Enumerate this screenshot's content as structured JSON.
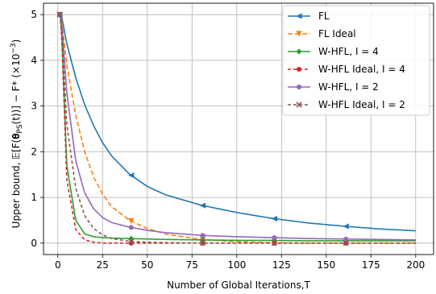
{
  "chart_data": {
    "type": "line",
    "xlabel": "Number of Global Iterations,T",
    "ylabel_main": "Upper bound, 𝔼[F(𝛉",
    "ylabel_sub": "PS",
    "ylabel_tail": "(t))] − F* (×10",
    "ylabel_exp": "−3",
    "ylabel_close": ")",
    "xlim": [
      -8,
      210
    ],
    "ylim": [
      -0.25,
      5.25
    ],
    "xticks": [
      0,
      25,
      50,
      75,
      100,
      125,
      150,
      175,
      200
    ],
    "yticks": [
      0,
      1,
      2,
      3,
      4,
      5
    ],
    "xtick_labels": [
      "0",
      "25",
      "50",
      "75",
      "100",
      "125",
      "150",
      "175",
      "200"
    ],
    "ytick_labels": [
      "0",
      "1",
      "2",
      "3",
      "4",
      "5"
    ],
    "grid": true,
    "legend_position": "top-right",
    "legend": [
      "FL",
      "FL Ideal",
      "W-HFL, I = 4",
      "W-HFL Ideal, I = 4",
      "W-HFL, I = 2",
      "W-HFL Ideal, I = 2"
    ],
    "x": [
      1,
      2,
      5,
      10,
      15,
      20,
      25,
      30,
      40,
      50,
      60,
      80,
      100,
      120,
      140,
      160,
      180,
      200
    ],
    "series": [
      {
        "name": "FL",
        "color": "#1f77b4",
        "dash": "",
        "marker": "triangle-left",
        "values": [
          5.0,
          4.99,
          4.37,
          3.62,
          3.03,
          2.57,
          2.2,
          1.91,
          1.51,
          1.24,
          1.06,
          0.83,
          0.67,
          0.54,
          0.44,
          0.37,
          0.31,
          0.27
        ],
        "markers_at": [
          1,
          41,
          81,
          121,
          161
        ]
      },
      {
        "name": "FL Ideal",
        "color": "#ff7f0e",
        "dash": "6,3",
        "marker": "triangle-down",
        "values": [
          5.0,
          4.95,
          3.9,
          2.8,
          2.0,
          1.45,
          1.07,
          0.8,
          0.5,
          0.32,
          0.2,
          0.08,
          0.03,
          0.01,
          0.0,
          0.0,
          0.0,
          0.0
        ],
        "markers_at": [
          1,
          41,
          81,
          121,
          161
        ]
      },
      {
        "name": "W-HFL, I = 4",
        "color": "#2ca02c",
        "dash": "",
        "marker": "diamond",
        "values": [
          5.0,
          4.8,
          1.7,
          0.5,
          0.2,
          0.14,
          0.12,
          0.11,
          0.1,
          0.09,
          0.08,
          0.07,
          0.06,
          0.06,
          0.05,
          0.05,
          0.05,
          0.05
        ],
        "markers_at": [
          1,
          41,
          81,
          121,
          161
        ]
      },
      {
        "name": "W-HFL Ideal, I = 4",
        "color": "#d62728",
        "dash": "4,3",
        "marker": "circle",
        "values": [
          5.0,
          4.7,
          1.4,
          0.3,
          0.07,
          0.02,
          0.0,
          0.0,
          0.0,
          0.0,
          0.0,
          0.0,
          0.0,
          0.0,
          0.0,
          0.0,
          0.0,
          0.0
        ],
        "markers_at": [
          1,
          41,
          81,
          121,
          161
        ]
      },
      {
        "name": "W-HFL, I = 2",
        "color": "#9467bd",
        "dash": "",
        "marker": "hexagon",
        "values": [
          5.0,
          4.9,
          3.3,
          1.8,
          1.1,
          0.75,
          0.56,
          0.45,
          0.35,
          0.28,
          0.23,
          0.17,
          0.14,
          0.12,
          0.1,
          0.09,
          0.08,
          0.07
        ],
        "markers_at": [
          1,
          41,
          81,
          121,
          161
        ]
      },
      {
        "name": "W-HFL Ideal, I = 2",
        "color": "#8c564b",
        "dash": "4,3",
        "marker": "x",
        "values": [
          5.0,
          4.85,
          2.6,
          1.2,
          0.6,
          0.32,
          0.18,
          0.1,
          0.04,
          0.02,
          0.01,
          0.0,
          0.0,
          0.0,
          0.0,
          0.0,
          0.0,
          0.0
        ],
        "markers_at": [
          1,
          41,
          81,
          121,
          161
        ]
      }
    ]
  }
}
